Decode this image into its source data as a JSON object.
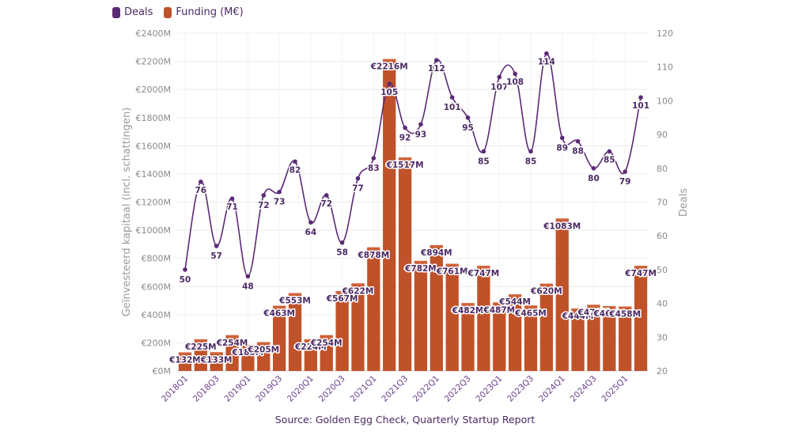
{
  "legend": {
    "deals_label": "Deals",
    "funding_label": "Funding (M€)"
  },
  "colors": {
    "deals": "#5b2a76",
    "funding": "#c0522a",
    "funding_top": "#d0633a"
  },
  "source": "Source: Golden Egg Check, Quarterly Startup Report",
  "chart_data": {
    "type": "bar",
    "categories": [
      "2018Q1",
      "2018Q2",
      "2018Q3",
      "2018Q4",
      "2019Q1",
      "2019Q2",
      "2019Q3",
      "2019Q4",
      "2020Q1",
      "2020Q2",
      "2020Q3",
      "2020Q4",
      "2021Q1",
      "2021Q2",
      "2021Q3",
      "2021Q4",
      "2022Q1",
      "2022Q2",
      "2022Q3",
      "2022Q4",
      "2023Q1",
      "2023Q2",
      "2023Q3",
      "2023Q4",
      "2024Q1",
      "2024Q2",
      "2024Q3",
      "2024Q4",
      "2025Q1",
      "2025Q2"
    ],
    "x_tick_labels": [
      "2018Q1",
      "2018Q3",
      "2019Q1",
      "2019Q3",
      "2020Q1",
      "2020Q3",
      "2021Q1",
      "2021Q3",
      "2022Q1",
      "2022Q3",
      "2023Q1",
      "2023Q3",
      "2024Q1",
      "2024Q3",
      "2025Q1"
    ],
    "series": [
      {
        "name": "Funding (M€)",
        "type": "bar",
        "axis": "left",
        "values": [
          132,
          225,
          133,
          254,
          185,
          205,
          463,
          553,
          224,
          254,
          567,
          622,
          878,
          2216,
          1517,
          782,
          894,
          761,
          482,
          747,
          487,
          544,
          465,
          620,
          1083,
          444,
          470,
          460,
          458,
          747
        ],
        "labels": [
          "€132M",
          "€225M",
          "€133M",
          "€254M",
          "€185M",
          "€205M",
          "€463M",
          "€553M",
          "€224M",
          "€254M",
          "€567M",
          "€622M",
          "€878M",
          "€2216M",
          "€1517M",
          "€782M",
          "€894M",
          "€761M",
          "€482M",
          "€747M",
          "€487M",
          "€544M",
          "€465M",
          "€620M",
          "€1083M",
          "€444M",
          "€470M",
          "€460M",
          "€458M",
          "€747M"
        ]
      },
      {
        "name": "Deals",
        "type": "line",
        "axis": "right",
        "values": [
          50,
          76,
          57,
          71,
          48,
          72,
          73,
          82,
          64,
          72,
          58,
          77,
          83,
          105,
          92,
          93,
          112,
          101,
          95,
          85,
          107,
          108,
          85,
          114,
          89,
          88,
          80,
          85,
          79,
          101
        ],
        "labels": [
          "50",
          "76",
          "57",
          "71",
          "48",
          "72",
          "73",
          "82",
          "64",
          "72",
          "58",
          "77",
          "83",
          "105",
          "92",
          "93",
          "112",
          "101",
          "95",
          "85",
          "107",
          "108",
          "85",
          "114",
          "89",
          "88",
          "80",
          "85",
          "79",
          "101"
        ]
      }
    ],
    "ylabel": "Geïnvesteerd kapitaal (incl. schattingen)",
    "ylim": [
      0,
      2400
    ],
    "yticks": [
      "€0M",
      "€200M",
      "€400M",
      "€600M",
      "€800M",
      "€1000M",
      "€1200M",
      "€1400M",
      "€1600M",
      "€1800M",
      "€2000M",
      "€2200M",
      "€2400M"
    ],
    "y2label": "Deals",
    "y2lim": [
      20,
      120
    ],
    "y2ticks": [
      "20",
      "30",
      "40",
      "50",
      "60",
      "70",
      "80",
      "90",
      "100",
      "110",
      "120"
    ],
    "grid": true,
    "legend_position": "top-left"
  }
}
